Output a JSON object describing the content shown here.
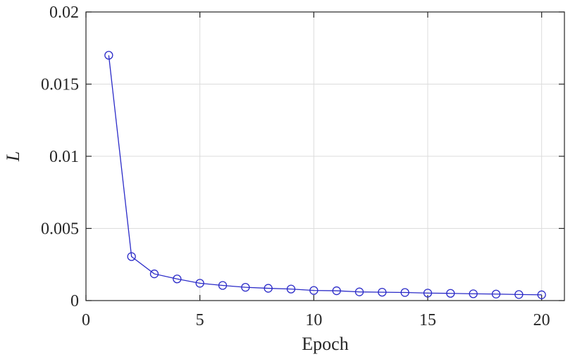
{
  "chart_data": {
    "type": "line",
    "xlabel": "Epoch",
    "ylabel": "L",
    "xlim": [
      0,
      21
    ],
    "ylim": [
      0,
      0.02
    ],
    "xticks": [
      0,
      5,
      10,
      15,
      20
    ],
    "xtick_labels": [
      "0",
      "5",
      "10",
      "15",
      "20"
    ],
    "yticks": [
      0,
      0.005,
      0.01,
      0.015,
      0.02
    ],
    "ytick_labels": [
      "0",
      "0.005",
      "0.01",
      "0.015",
      "0.02"
    ],
    "grid": true,
    "marker": "circle",
    "color": "#2b2bc8",
    "series": [
      {
        "x": [
          1,
          2,
          3,
          4,
          5,
          6,
          7,
          8,
          9,
          10,
          11,
          12,
          13,
          14,
          15,
          16,
          17,
          18,
          19,
          20
        ],
        "values": [
          0.017,
          0.00305,
          0.00185,
          0.0015,
          0.0012,
          0.00105,
          0.00092,
          0.00085,
          0.0008,
          0.0007,
          0.00068,
          0.0006,
          0.00058,
          0.00056,
          0.00052,
          0.0005,
          0.00047,
          0.00045,
          0.00042,
          0.0004
        ]
      }
    ]
  }
}
